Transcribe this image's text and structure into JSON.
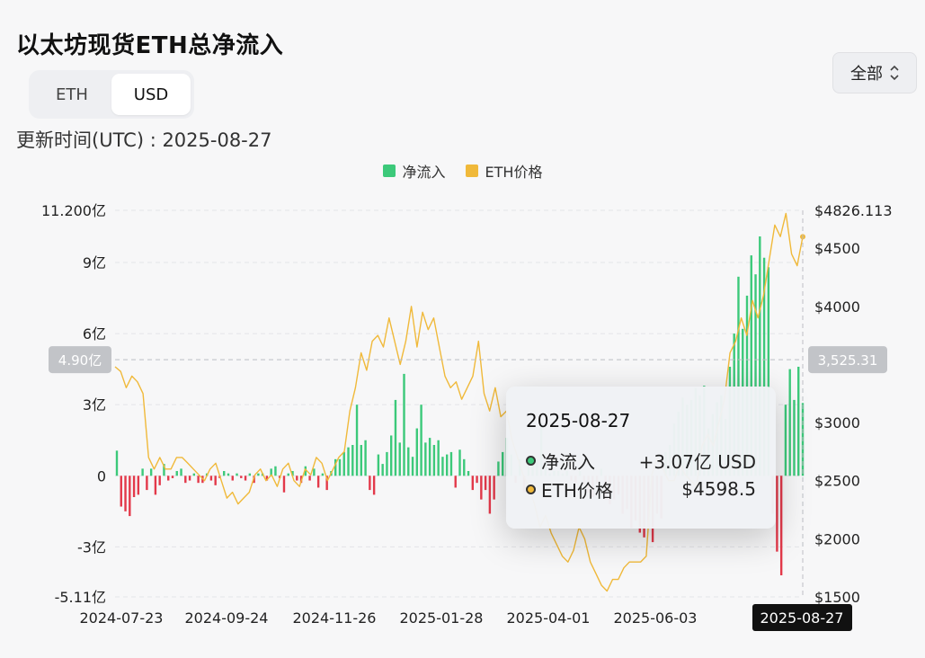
{
  "header": {
    "title": "以太坊现货ETH总净流入",
    "updated": "更新时间(UTC) : 2025-08-27"
  },
  "unit_toggle": {
    "options": [
      "ETH",
      "USD"
    ],
    "selected": "USD"
  },
  "range_select": {
    "value": "全部"
  },
  "legend": [
    {
      "label": "净流入",
      "color": "#3cc97a"
    },
    {
      "label": "ETH价格",
      "color": "#f0b93a"
    }
  ],
  "tooltip": {
    "date": "2025-08-27",
    "rows": [
      {
        "label": "净流入",
        "value": "+3.07亿 USD",
        "color": "#3cc97a"
      },
      {
        "label": "ETH价格",
        "value": "$4598.5",
        "color": "#f0b93a"
      }
    ]
  },
  "crosshair": {
    "y_label": "4.90亿",
    "y2_label": "3,525.31",
    "x_label": "2025-08-27",
    "y_value": 4.9
  },
  "colors": {
    "inflow": "#3cc97a",
    "outflow": "#e3394a",
    "price": "#f0b93a"
  },
  "chart_data": {
    "type": "bar",
    "title": "以太坊现货ETH总净流入",
    "x_ticks": [
      "2024-07-23",
      "2024-09-24",
      "2024-11-26",
      "2025-01-28",
      "2025-04-01",
      "2025-06-03",
      "2025-08-27"
    ],
    "y_ticks": [
      "11.200亿",
      "9亿",
      "6亿",
      "3亿",
      "0",
      "-3亿",
      "-5.11亿"
    ],
    "y_tick_values": [
      11.2,
      9,
      6,
      3,
      0,
      -3,
      -5.11
    ],
    "ylim": [
      -5.11,
      11.2
    ],
    "y2_ticks": [
      "$4826.113",
      "$4500",
      "$4000",
      "$3000",
      "$2500",
      "$2000",
      "$1500"
    ],
    "y2_tick_values": [
      4826.113,
      4500,
      4000,
      3000,
      2500,
      2000,
      1500
    ],
    "y2lim": [
      1500,
      4826.113
    ],
    "start_date": "2024-07-23",
    "end_date": "2025-08-27",
    "net_inflow_yi": [
      1.06,
      -1.3,
      -1.5,
      -1.7,
      -0.9,
      -0.8,
      0.3,
      -0.6,
      0.3,
      -0.8,
      -0.4,
      0.5,
      -0.2,
      -0.1,
      0.2,
      0.3,
      -0.3,
      -0.2,
      0.1,
      -0.3,
      -0.3,
      0.1,
      -0.2,
      -0.4,
      -0.1,
      0.2,
      0.1,
      -0.2,
      0.1,
      -0.1,
      -0.2,
      0.1,
      -0.3,
      0.1,
      0.1,
      -0.2,
      0.3,
      0.4,
      -0.1,
      -0.7,
      0.1,
      0.2,
      -0.2,
      -0.3,
      0.4,
      -0.2,
      0.3,
      -0.5,
      0.1,
      -0.6,
      0.2,
      0.7,
      0.7,
      1.0,
      1.2,
      1.3,
      3.0,
      1.3,
      1.5,
      -0.6,
      -0.8,
      0.9,
      0.5,
      1.0,
      1.7,
      3.2,
      1.4,
      4.3,
      1.2,
      0.8,
      2.0,
      3.0,
      1.4,
      1.6,
      1.3,
      1.5,
      0.8,
      0.9,
      1.0,
      -0.5,
      1.1,
      0.7,
      0.2,
      -0.6,
      -0.3,
      -1.0,
      -0.6,
      -1.6,
      -1.0,
      0.6,
      1.0,
      1.6,
      0.9,
      -0.3,
      0.7,
      -0.7,
      0.4,
      0.8,
      0.7,
      2.2,
      0.6,
      0.1,
      0.2,
      0.2,
      0.1,
      0.2,
      -0.2,
      -0.3,
      0.2,
      -0.4,
      -0.7,
      -0.9,
      -0.3,
      0.3,
      -1.0,
      -1.2,
      -1.0,
      -0.8,
      -1.6,
      -1.4,
      -2.2,
      -1.9,
      -2.4,
      -2.6,
      -2.2,
      -2.8,
      -1.6,
      -1.8,
      1.0,
      1.3,
      2.2,
      2.7,
      3.3,
      3.0,
      3.2,
      3.7,
      3.4,
      3.8,
      2.0,
      2.6,
      3.1,
      3.4,
      2.4,
      4.6,
      6.0,
      8.4,
      6.2,
      7.6,
      9.3,
      8.5,
      10.1,
      9.2,
      8.8,
      -1.6,
      -3.2,
      -4.2,
      3.0,
      4.5,
      3.2,
      4.6,
      3.07
    ],
    "eth_price": [
      3480,
      3440,
      3300,
      3400,
      3350,
      3250,
      2700,
      2600,
      2700,
      2600,
      2600,
      2700,
      2700,
      2650,
      2600,
      2550,
      2500,
      2600,
      2650,
      2500,
      2350,
      2400,
      2300,
      2350,
      2400,
      2550,
      2600,
      2500,
      2550,
      2450,
      2600,
      2650,
      2500,
      2450,
      2600,
      2550,
      2700,
      2650,
      2500,
      2600,
      2700,
      2750,
      3100,
      3300,
      3600,
      3450,
      3700,
      3750,
      3650,
      3900,
      3700,
      3500,
      3700,
      4000,
      3650,
      3950,
      3800,
      3900,
      3650,
      3400,
      3300,
      3350,
      3200,
      3300,
      3400,
      3700,
      3250,
      3100,
      3300,
      3050,
      3100,
      2850,
      2700,
      2550,
      2450,
      2300,
      2100,
      2200,
      2050,
      1950,
      1850,
      1800,
      1900,
      2100,
      2000,
      1800,
      1700,
      1600,
      1550,
      1650,
      1650,
      1750,
      1800,
      1800,
      1800,
      1850,
      2550,
      2700,
      2600,
      2500,
      2500,
      2650,
      2550,
      2500,
      2450,
      2800,
      2900,
      2800,
      3000,
      3200,
      3600,
      3700,
      3900,
      3750,
      4050,
      3900,
      4100,
      4400,
      4700,
      4600,
      4800,
      4450,
      4350,
      4598.5
    ]
  }
}
